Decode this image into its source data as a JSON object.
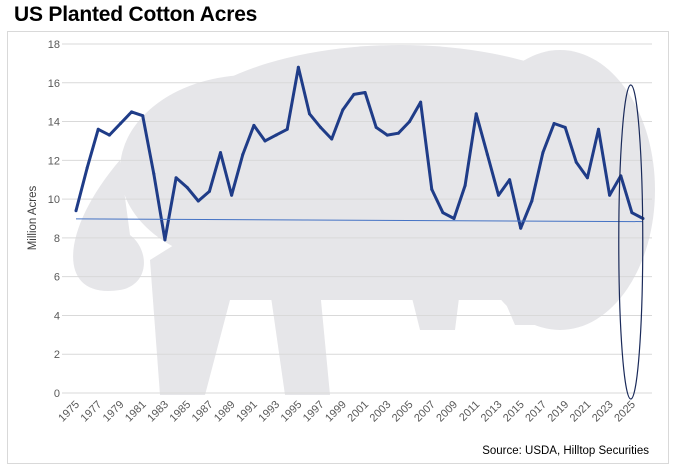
{
  "chart_data": {
    "type": "line",
    "title": "US Planted Cotton Acres",
    "xlabel": "",
    "ylabel": "Million Acres",
    "ylim": [
      0,
      18
    ],
    "yticks": [
      0,
      2,
      4,
      6,
      8,
      10,
      12,
      14,
      16,
      18
    ],
    "xlim": [
      1975,
      2026
    ],
    "xtick_labels": [
      "1975",
      "1977",
      "1979",
      "1981",
      "1983",
      "1985",
      "1987",
      "1989",
      "1991",
      "1993",
      "1995",
      "1997",
      "1999",
      "2001",
      "2003",
      "2005",
      "2007",
      "2009",
      "2011",
      "2013",
      "2015",
      "2017",
      "2019",
      "2021",
      "2023",
      "2025"
    ],
    "source": "Source: USDA, Hilltop Securities",
    "series": [
      {
        "name": "Planted Cotton Acres",
        "color": "#1f3c88",
        "x": [
          1975,
          1976,
          1977,
          1978,
          1979,
          1980,
          1981,
          1982,
          1983,
          1984,
          1985,
          1986,
          1987,
          1988,
          1989,
          1990,
          1991,
          1992,
          1993,
          1994,
          1995,
          1996,
          1997,
          1998,
          1999,
          2000,
          2001,
          2002,
          2003,
          2004,
          2005,
          2006,
          2007,
          2008,
          2009,
          2010,
          2011,
          2012,
          2013,
          2014,
          2015,
          2016,
          2017,
          2018,
          2019,
          2020,
          2021,
          2022,
          2023,
          2024,
          2025,
          2026
        ],
        "values": [
          9.4,
          11.6,
          13.6,
          13.3,
          13.9,
          14.5,
          14.3,
          11.3,
          7.9,
          11.1,
          10.6,
          9.9,
          10.4,
          12.4,
          10.2,
          12.3,
          13.8,
          13.0,
          13.3,
          13.6,
          16.8,
          14.4,
          13.7,
          13.1,
          14.6,
          15.4,
          15.5,
          13.7,
          13.3,
          13.4,
          14.0,
          15.0,
          10.5,
          9.3,
          9.0,
          10.7,
          14.4,
          12.3,
          10.2,
          11.0,
          8.5,
          9.9,
          12.4,
          13.9,
          13.7,
          11.9,
          11.1,
          13.6,
          10.2,
          11.2,
          9.3,
          9.0
        ]
      },
      {
        "name": "Trend",
        "color": "#4472c4",
        "x": [
          1975,
          2026
        ],
        "values": [
          8.98,
          8.84
        ]
      }
    ],
    "annotation": "ellipse highlighting 2025-2026"
  }
}
